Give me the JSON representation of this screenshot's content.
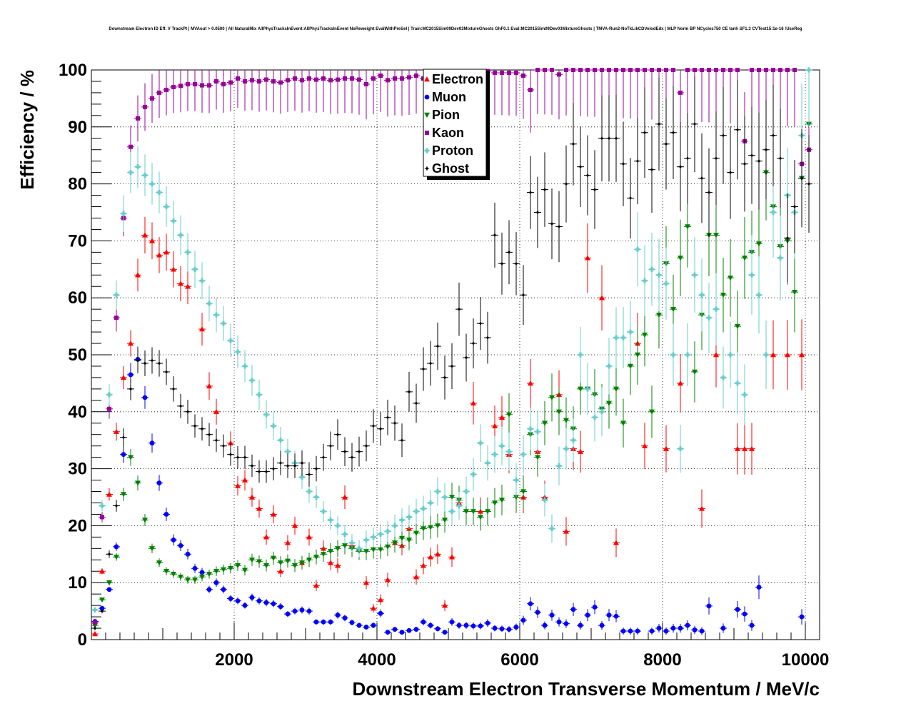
{
  "chart_data": {
    "type": "scatter",
    "title": "Downstream Electron ID Eff. V TrackPt | MVAout > 0.0500 | All NaturalMix AllPhysTracksInEvent:AllPhysTracksInEvent NoReweight EvalWithPreSel | Train:MC2015Sim09Dev03MixtureGhosts GhF0.1 Eval:MC2015Sim09Dev03MixtureGhosts | TMVA-Run2-NoTkLikCDVelodEdx | MLP Norm BP NCycles750 CE tanh SF1.3 CVTest15:1e-16 !UseReg",
    "xlabel": "Downstream Electron Transverse Momentum / MeV/c",
    "ylabel": "Efficiency / %",
    "xlim": [
      0,
      10200
    ],
    "ylim": [
      0,
      100
    ],
    "xticks": [
      2000,
      4000,
      6000,
      8000,
      10000
    ],
    "yticks": [
      0,
      10,
      20,
      30,
      40,
      50,
      60,
      70,
      80,
      90,
      100
    ],
    "grid": true,
    "legend": "top-center",
    "series": [
      {
        "name": "Electron",
        "color": "#ff0000",
        "marker": "triangle-up",
        "x": [
          50,
          150,
          250,
          350,
          450,
          550,
          650,
          750,
          850,
          950,
          1050,
          1150,
          1250,
          1350,
          1550,
          1650,
          1750,
          1950,
          2050,
          2150,
          2250,
          2350,
          2450,
          2550,
          2650,
          2750,
          2850,
          2950,
          3050,
          3150,
          3250,
          3350,
          3450,
          3550,
          3650,
          3750,
          3850,
          3950,
          4050,
          4150,
          4250,
          4350,
          4450,
          4550,
          4650,
          4750,
          4850,
          4950,
          5050,
          5150,
          5350,
          5450,
          5650,
          5750,
          5850,
          6050,
          6150,
          6250,
          6350,
          6550,
          6650,
          6750,
          6850,
          6950,
          7150,
          7350,
          7650,
          7750,
          8050,
          8250,
          8550,
          8750,
          9050,
          9150,
          9250,
          9550,
          9750,
          9950
        ],
        "y": [
          1,
          12,
          25.5,
          36.5,
          46,
          52,
          64,
          71,
          70,
          67.5,
          68,
          65,
          62.5,
          62,
          54.5,
          44.5,
          40,
          34.5,
          27,
          28,
          25,
          23,
          18,
          22,
          12,
          17,
          20,
          13.5,
          18,
          9.5,
          16,
          13.5,
          13,
          25,
          16.5,
          16,
          10,
          5.5,
          7,
          10.5,
          17,
          16.5,
          19.5,
          11,
          13,
          14.5,
          15,
          6,
          14.5,
          24,
          41.5,
          22.5,
          37.5,
          39,
          32.5,
          25,
          45,
          33,
          25,
          43,
          19,
          33.5,
          33,
          67,
          60,
          17,
          52,
          34,
          33.5,
          45,
          23,
          50,
          33.5,
          33.5,
          33.5,
          50,
          50,
          50
        ]
      },
      {
        "name": "Muon",
        "color": "#0000ff",
        "marker": "circle",
        "x": [
          50,
          150,
          250,
          350,
          450,
          550,
          650,
          750,
          850,
          950,
          1050,
          1150,
          1250,
          1350,
          1450,
          1550,
          1650,
          1750,
          1850,
          1950,
          2050,
          2150,
          2250,
          2350,
          2450,
          2550,
          2650,
          2750,
          2850,
          2950,
          3050,
          3150,
          3250,
          3350,
          3450,
          3550,
          3650,
          3750,
          3850,
          3950,
          4050,
          4150,
          4250,
          4350,
          4450,
          4550,
          4650,
          4750,
          4850,
          4950,
          5050,
          5150,
          5250,
          5350,
          5450,
          5550,
          5650,
          5750,
          5850,
          5950,
          6050,
          6150,
          6250,
          6350,
          6450,
          6550,
          6650,
          6750,
          6850,
          6950,
          7050,
          7150,
          7250,
          7350,
          7450,
          7550,
          7650,
          7850,
          7950,
          8050,
          8150,
          8250,
          8350,
          8450,
          8550,
          8650,
          8850,
          9050,
          9150,
          9250,
          9350,
          9950
        ],
        "y": [
          3.2,
          5.5,
          8.8,
          16.3,
          32.5,
          46.5,
          49.2,
          42.5,
          34.5,
          27.5,
          22,
          17.5,
          16.5,
          15,
          12.5,
          11.8,
          8.8,
          10,
          8.8,
          7.2,
          6.8,
          6,
          7.4,
          6.8,
          6.5,
          6.3,
          5.8,
          4.5,
          5,
          5.2,
          5,
          3.1,
          3.1,
          3.1,
          4.3,
          3.8,
          3,
          2.5,
          2.2,
          2.5,
          4.6,
          1.3,
          1.8,
          1.3,
          1.6,
          1.8,
          3.1,
          2.5,
          1.9,
          1.3,
          3.1,
          2.5,
          2.5,
          2.4,
          2.4,
          2.9,
          2,
          1.9,
          1.8,
          2.2,
          3.4,
          6.3,
          4.8,
          2.5,
          4.3,
          3.1,
          2.8,
          5.3,
          2.5,
          4.3,
          5.7,
          2.5,
          4.3,
          4.1,
          1.5,
          1.5,
          1.5,
          1.5,
          2,
          1.5,
          2,
          2,
          2.5,
          1.7,
          1.5,
          5.9,
          2,
          5.3,
          4.5,
          2.5,
          9.2,
          4
        ]
      },
      {
        "name": "Pion",
        "color": "#008000",
        "marker": "triangle-down",
        "x": [
          50,
          150,
          250,
          350,
          450,
          550,
          650,
          750,
          850,
          950,
          1050,
          1150,
          1250,
          1350,
          1450,
          1550,
          1650,
          1750,
          1850,
          1950,
          2050,
          2150,
          2250,
          2350,
          2450,
          2550,
          2650,
          2750,
          2850,
          2950,
          3050,
          3150,
          3250,
          3350,
          3450,
          3550,
          3650,
          3750,
          3850,
          3950,
          4050,
          4150,
          4250,
          4350,
          4450,
          4550,
          4650,
          4750,
          4850,
          4950,
          5050,
          5150,
          5250,
          5350,
          5450,
          5550,
          5650,
          5750,
          5850,
          5950,
          6050,
          6150,
          6250,
          6350,
          6450,
          6550,
          6650,
          6750,
          6850,
          6950,
          7050,
          7150,
          7250,
          7350,
          7450,
          7550,
          7650,
          7750,
          7850,
          7950,
          8050,
          8150,
          8250,
          8350,
          8450,
          8550,
          8650,
          8750,
          8850,
          8950,
          9050,
          9150,
          9250,
          9350,
          9450,
          9550,
          9650,
          9750,
          9850,
          9950,
          10050
        ],
        "y": [
          2.5,
          7,
          10,
          14.5,
          25.5,
          32,
          27.5,
          21,
          16,
          13.5,
          12,
          11.5,
          11,
          10.5,
          10.5,
          11,
          11.5,
          12,
          12.3,
          12.5,
          13,
          12.2,
          14,
          13.7,
          13,
          14.3,
          13.5,
          13.8,
          13,
          13.5,
          14,
          14.5,
          15,
          15.5,
          16,
          16.5,
          16,
          15.5,
          15.5,
          15.8,
          15.8,
          16.3,
          17,
          17.8,
          17.5,
          18.7,
          19.5,
          19.7,
          20,
          21,
          25,
          24.5,
          22.5,
          22.5,
          21.5,
          22.5,
          24,
          24.5,
          39.5,
          25,
          26,
          36,
          32,
          38,
          42.5,
          40,
          38.5,
          37,
          44,
          44,
          43,
          40.5,
          41.5,
          44,
          38,
          48,
          50,
          53.5,
          40,
          57,
          66,
          58,
          67,
          72.5,
          47,
          57,
          71,
          71,
          60.5,
          63.5,
          55,
          67,
          68,
          69.5,
          82,
          76,
          69,
          70,
          61,
          81,
          90.5
        ]
      },
      {
        "name": "Kaon",
        "color": "#990099",
        "marker": "square",
        "x": [
          50,
          150,
          250,
          350,
          450,
          550,
          650,
          750,
          850,
          950,
          1050,
          1150,
          1250,
          1350,
          1450,
          1550,
          1650,
          1750,
          1850,
          1950,
          2050,
          2150,
          2250,
          2350,
          2450,
          2550,
          2650,
          2750,
          2850,
          2950,
          3050,
          3150,
          3250,
          3350,
          3450,
          3550,
          3650,
          3750,
          3850,
          3950,
          4050,
          4150,
          4250,
          4350,
          4450,
          4550,
          4650,
          4750,
          4850,
          4950,
          5050,
          5150,
          5250,
          5350,
          5450,
          5550,
          5650,
          5750,
          5850,
          5950,
          6050,
          6150,
          6250,
          6350,
          6450,
          6550,
          6650,
          6750,
          6850,
          6950,
          7050,
          7150,
          7250,
          7350,
          7450,
          7550,
          7650,
          7750,
          7850,
          7950,
          8050,
          8150,
          8250,
          8350,
          8450,
          8550,
          8650,
          8750,
          8850,
          8950,
          9050,
          9150,
          9250,
          9350,
          9450,
          9550,
          9650,
          9750,
          9850,
          9950,
          10050
        ],
        "y": [
          3,
          21.5,
          40.5,
          56.5,
          74,
          86.5,
          91.5,
          93.5,
          95,
          96,
          96.5,
          97,
          97.2,
          97.5,
          97.5,
          97.3,
          97.3,
          98,
          97.5,
          97.8,
          98.5,
          98,
          98.2,
          98,
          98.3,
          98,
          97.8,
          98.2,
          98.5,
          98.2,
          98.5,
          98.3,
          98.5,
          98.2,
          98.3,
          98.5,
          98.5,
          98.3,
          97.5,
          98.5,
          99,
          98.2,
          98.5,
          98.5,
          98.7,
          99,
          98.5,
          99,
          98.8,
          99.2,
          99.2,
          99.3,
          99.5,
          99.3,
          99.5,
          99.8,
          99.5,
          99.5,
          99.5,
          99.5,
          99,
          96.5,
          100,
          100,
          100,
          99.2,
          100,
          100,
          100,
          100,
          100,
          100,
          100,
          100,
          100,
          100,
          100,
          100,
          100,
          100,
          100,
          100,
          96,
          100,
          100,
          100,
          100,
          100,
          100,
          100,
          100,
          87.5,
          100,
          100,
          100,
          100,
          100,
          100,
          100,
          83.5,
          86
        ]
      },
      {
        "name": "Proton",
        "color": "#66cccc",
        "marker": "cross",
        "x": [
          50,
          150,
          250,
          350,
          450,
          550,
          650,
          750,
          850,
          950,
          1050,
          1150,
          1250,
          1350,
          1450,
          1550,
          1650,
          1750,
          1850,
          1950,
          2050,
          2150,
          2250,
          2350,
          2450,
          2550,
          2650,
          2750,
          2850,
          2950,
          3050,
          3150,
          3250,
          3350,
          3450,
          3550,
          3650,
          3750,
          3850,
          3950,
          4050,
          4150,
          4250,
          4350,
          4450,
          4550,
          4650,
          4750,
          4850,
          4950,
          5050,
          5150,
          5250,
          5350,
          5450,
          5550,
          5650,
          5750,
          5850,
          5950,
          6050,
          6150,
          6250,
          6350,
          6450,
          6550,
          6650,
          6750,
          6850,
          6950,
          7050,
          7150,
          7250,
          7350,
          7450,
          7550,
          7650,
          7750,
          7850,
          7950,
          8050,
          8150,
          8250,
          8350,
          8450,
          8550,
          8650,
          8750,
          8850,
          8950,
          9050,
          9150,
          9250,
          9350,
          9450,
          9550,
          9650,
          9750,
          9850,
          9950,
          10050
        ],
        "y": [
          5.2,
          23.5,
          43,
          60.5,
          74.8,
          82,
          83,
          81.5,
          80,
          78.5,
          76,
          73.5,
          71,
          68,
          65,
          63,
          59,
          57,
          55.5,
          52.5,
          50.5,
          48,
          45.5,
          43,
          39.5,
          37.5,
          35,
          33,
          31,
          28.5,
          26,
          25,
          22.5,
          21,
          20,
          18.5,
          17,
          16,
          17.5,
          18,
          18.5,
          19,
          20,
          21,
          21.5,
          22.5,
          23,
          24,
          26,
          25,
          22.5,
          23.5,
          26,
          29,
          34.5,
          31,
          32.5,
          34,
          33,
          28,
          32.5,
          37,
          36.5,
          24.5,
          19.5,
          30.5,
          33.5,
          35,
          50,
          44,
          39,
          40,
          48,
          53,
          53,
          54,
          68.5,
          63,
          65,
          64,
          62.5,
          50,
          33.5,
          50,
          64,
          60.5,
          56.5,
          58,
          46,
          50,
          45,
          43,
          64,
          60.5,
          50,
          75,
          67,
          78,
          75,
          88.5,
          100
        ]
      },
      {
        "name": "Ghost",
        "color": "#000000",
        "marker": "star",
        "x": [
          50,
          150,
          250,
          350,
          450,
          550,
          650,
          750,
          850,
          950,
          1050,
          1150,
          1250,
          1350,
          1450,
          1550,
          1650,
          1750,
          1850,
          1950,
          2050,
          2150,
          2250,
          2350,
          2450,
          2550,
          2650,
          2750,
          2850,
          2950,
          3050,
          3150,
          3250,
          3350,
          3450,
          3550,
          3650,
          3750,
          3850,
          3950,
          4050,
          4150,
          4250,
          4350,
          4450,
          4550,
          4650,
          4750,
          4850,
          4950,
          5050,
          5150,
          5250,
          5350,
          5450,
          5550,
          5650,
          5750,
          5850,
          5950,
          6050,
          6150,
          6250,
          6350,
          6450,
          6550,
          6650,
          6750,
          6850,
          6950,
          7050,
          7150,
          7250,
          7350,
          7450,
          7550,
          7650,
          7750,
          7850,
          7950,
          8050,
          8150,
          8250,
          8350,
          8450,
          8550,
          8650,
          8750,
          8850,
          8950,
          9050,
          9150,
          9250,
          9350,
          9450,
          9550,
          9650,
          9750,
          9850,
          9950,
          10050
        ],
        "y": [
          2,
          5,
          15,
          23.5,
          35.5,
          44,
          49,
          48.5,
          49,
          48.5,
          47,
          44,
          41,
          40,
          37.5,
          37,
          36,
          35,
          34,
          32.5,
          32,
          32,
          30.5,
          29.5,
          29.5,
          30,
          31,
          30.5,
          30.5,
          31,
          29,
          30,
          32,
          34,
          36,
          33,
          32,
          33,
          34,
          37.5,
          37,
          39,
          38,
          35,
          43.5,
          41.5,
          47.5,
          48.5,
          51.5,
          46,
          48,
          58,
          49.5,
          52,
          55.5,
          53,
          71,
          66,
          68,
          66,
          60.5,
          78.5,
          75,
          79,
          73,
          72.5,
          80,
          87,
          83,
          81.5,
          79,
          88,
          88,
          88,
          83.5,
          77.5,
          84,
          89,
          82.5,
          90.5,
          87,
          89,
          83,
          84.5,
          90.5,
          81,
          78.5,
          84.5,
          88.5,
          82,
          89.5,
          83.5,
          85,
          84,
          86,
          88.5,
          84.5,
          70.5,
          76,
          81,
          80
        ]
      }
    ]
  }
}
